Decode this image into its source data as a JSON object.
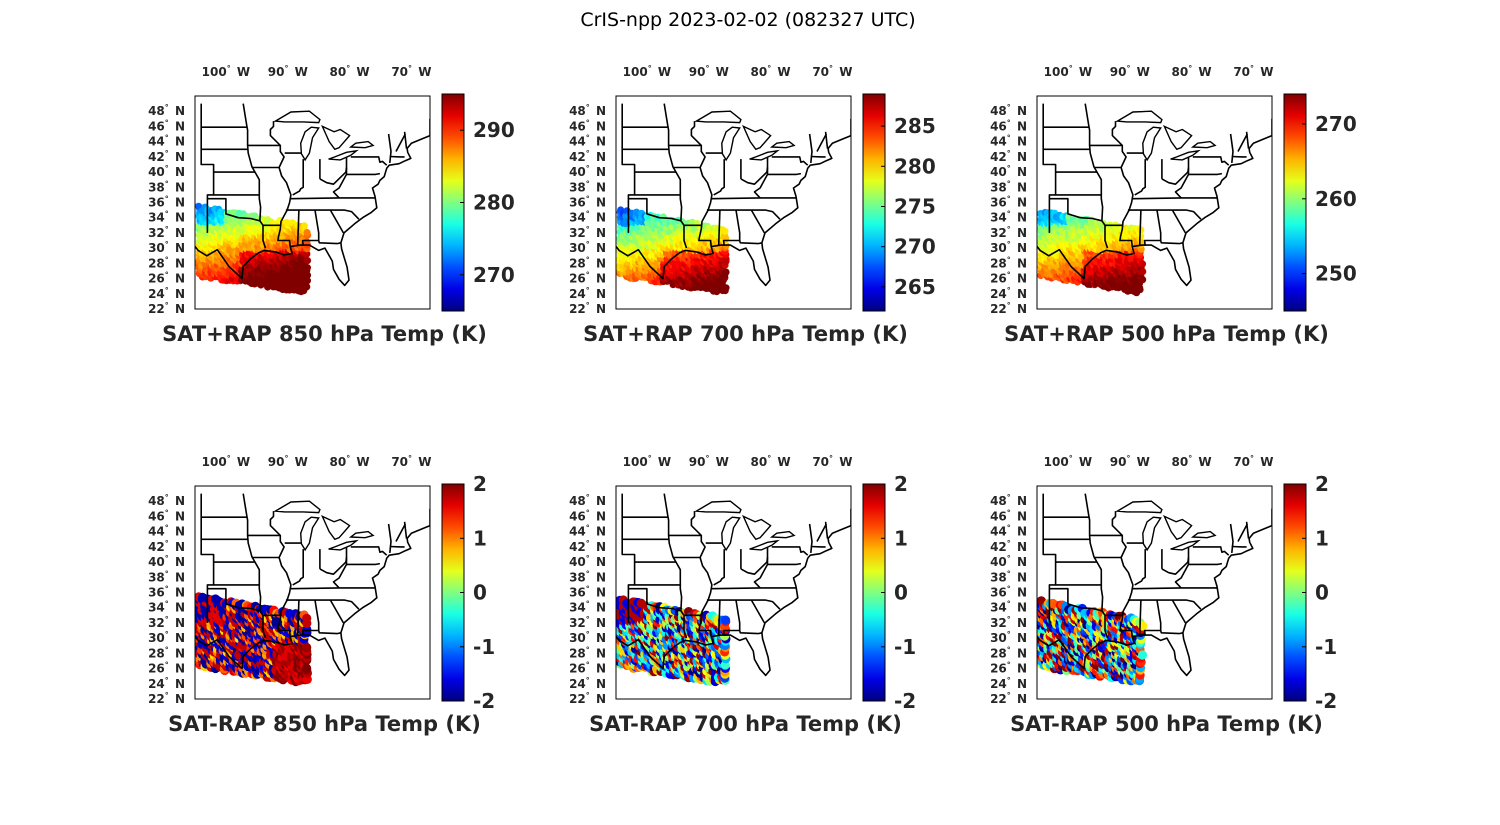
{
  "figure": {
    "title": "CrIS-npp 2023-02-02 (082327 UTC)"
  },
  "axes": {
    "lon_ticks": [
      {
        "deg": "100",
        "dir": "W"
      },
      {
        "deg": "90",
        "dir": "W"
      },
      {
        "deg": "80",
        "dir": "W"
      },
      {
        "deg": "70",
        "dir": "W"
      }
    ],
    "lat_ticks": [
      {
        "deg": "48",
        "dir": "N"
      },
      {
        "deg": "46",
        "dir": "N"
      },
      {
        "deg": "44",
        "dir": "N"
      },
      {
        "deg": "42",
        "dir": "N"
      },
      {
        "deg": "40",
        "dir": "N"
      },
      {
        "deg": "38",
        "dir": "N"
      },
      {
        "deg": "36",
        "dir": "N"
      },
      {
        "deg": "34",
        "dir": "N"
      },
      {
        "deg": "32",
        "dir": "N"
      },
      {
        "deg": "30",
        "dir": "N"
      },
      {
        "deg": "28",
        "dir": "N"
      },
      {
        "deg": "26",
        "dir": "N"
      },
      {
        "deg": "24",
        "dir": "N"
      },
      {
        "deg": "22",
        "dir": "N"
      }
    ],
    "lon_range": [
      -105,
      -67
    ],
    "lat_range": [
      22,
      50
    ]
  },
  "panels": [
    {
      "title": "SAT+RAP 850 hPa Temp (K)",
      "kind": "abs",
      "clim": [
        265,
        295
      ],
      "ticks": [
        "270",
        "280",
        "290"
      ],
      "tick_values": [
        270,
        280,
        290
      ]
    },
    {
      "title": "SAT+RAP 700 hPa Temp (K)",
      "kind": "abs",
      "clim": [
        262,
        289
      ],
      "ticks": [
        "265",
        "270",
        "275",
        "280",
        "285"
      ],
      "tick_values": [
        265,
        270,
        275,
        280,
        285
      ]
    },
    {
      "title": "SAT+RAP 500 hPa Temp (K)",
      "kind": "abs",
      "clim": [
        245,
        274
      ],
      "ticks": [
        "250",
        "260",
        "270"
      ],
      "tick_values": [
        250,
        260,
        270
      ]
    },
    {
      "title": "SAT-RAP 850 hPa Temp (K)",
      "kind": "diff",
      "clim": [
        -2,
        2
      ],
      "ticks": [
        "-2",
        "-1",
        "0",
        "1",
        "2"
      ],
      "tick_values": [
        -2,
        -1,
        0,
        1,
        2
      ]
    },
    {
      "title": "SAT-RAP 700 hPa Temp (K)",
      "kind": "diff",
      "clim": [
        -2,
        2
      ],
      "ticks": [
        "-2",
        "-1",
        "0",
        "1",
        "2"
      ],
      "tick_values": [
        -2,
        -1,
        0,
        1,
        2
      ]
    },
    {
      "title": "SAT-RAP 500 hPa Temp (K)",
      "kind": "diff",
      "clim": [
        -2,
        2
      ],
      "ticks": [
        "-2",
        "-1",
        "0",
        "1",
        "2"
      ],
      "tick_values": [
        -2,
        -1,
        0,
        1,
        2
      ]
    }
  ],
  "colors": {
    "frame": "#000000",
    "text": "#262626",
    "colormap": "jet"
  }
}
